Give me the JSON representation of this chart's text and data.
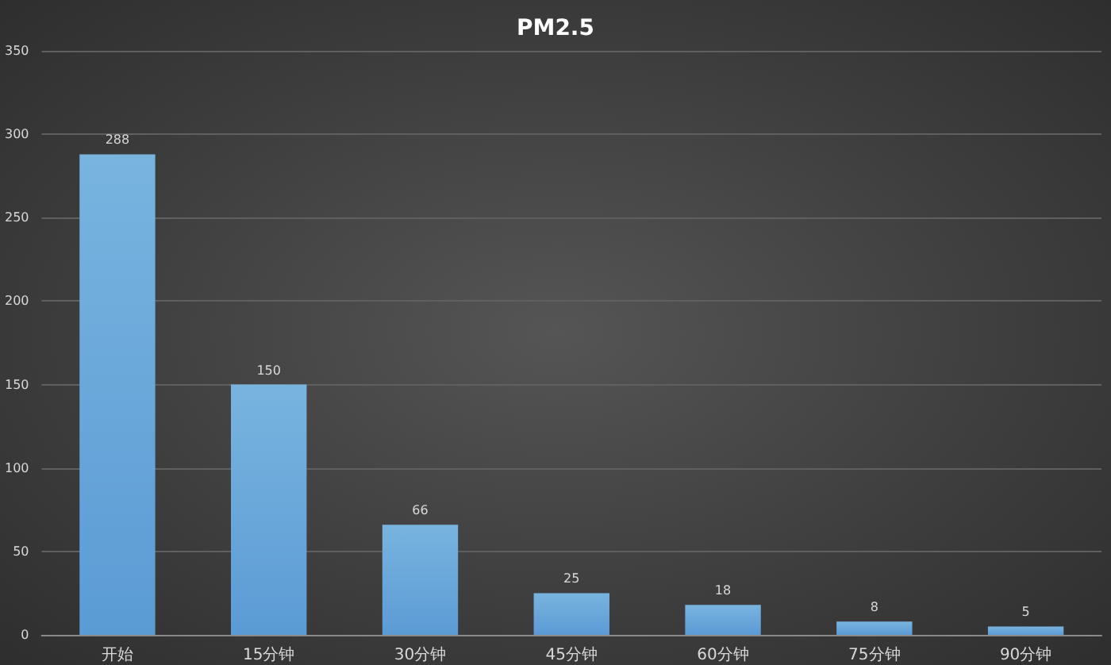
{
  "chart_data": {
    "type": "bar",
    "title": "PM2.5",
    "categories": [
      "开始",
      "15分钟",
      "30分钟",
      "45分钟",
      "60分钟",
      "75分钟",
      "90分钟"
    ],
    "values": [
      288,
      150,
      66,
      25,
      18,
      8,
      5
    ],
    "color": "#5b9bd5",
    "ylim": [
      0,
      350
    ],
    "yticks": [
      0,
      50,
      100,
      150,
      200,
      250,
      300,
      350
    ],
    "grid": "y",
    "data_labels": true
  }
}
